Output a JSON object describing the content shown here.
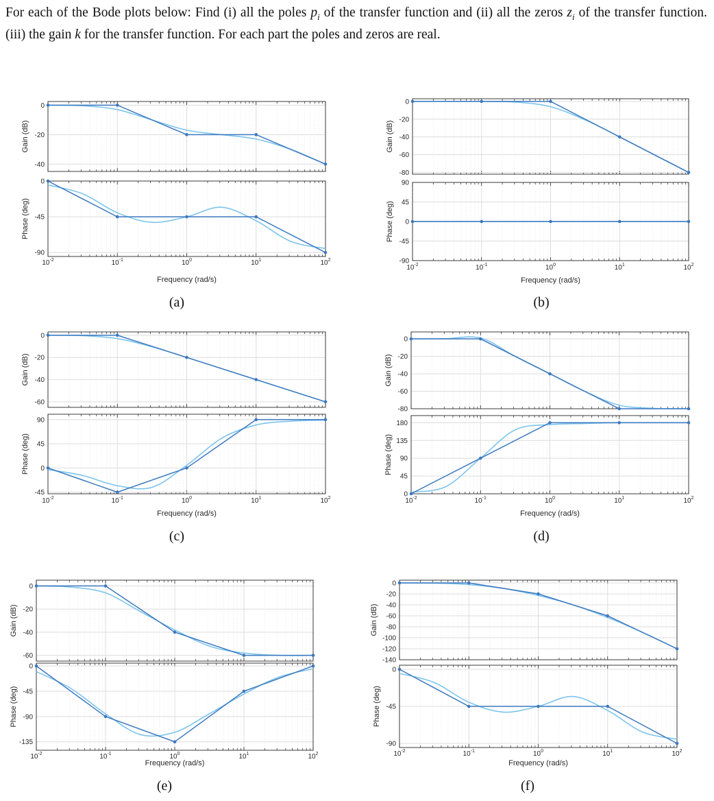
{
  "prompt": {
    "parts": [
      {
        "t": "For each of the Bode plots below: Find (i) all the poles "
      },
      {
        "t": "p",
        "i": true
      },
      {
        "t": "i",
        "sub": true
      },
      {
        "t": " of the transfer function and (ii) all the zeros "
      },
      {
        "t": "z",
        "i": true
      },
      {
        "t": "i",
        "sub": true
      },
      {
        "t": " of the transfer function. (iii) the gain "
      },
      {
        "t": "k",
        "i": true
      },
      {
        "t": " for the transfer function. For each part the poles and zeros are real."
      }
    ]
  },
  "colors": {
    "asymptote": "#3b78bf",
    "exact": "#7cc4ec",
    "grid": "#dcdcdc",
    "axis": "#262626"
  },
  "chart_data": [
    {
      "type": "line",
      "caption": "(a)",
      "x_scale": "log",
      "xlim": [
        0.01,
        100
      ],
      "x_ticks": [
        "10^-2",
        "10^-1",
        "10^0",
        "10^1",
        "10^2"
      ],
      "xlabel": "Frequency (rad/s)",
      "grid": true,
      "gain": {
        "ylabel": "Gain (dB)",
        "yticks": [
          0,
          -20,
          -40
        ],
        "ylim": [
          -45,
          2.5
        ],
        "asymptote": {
          "x": [
            0.01,
            0.1,
            1,
            10,
            100
          ],
          "y": [
            0,
            0,
            -20,
            -20,
            -40
          ]
        },
        "exact": {
          "x": [
            0.01,
            0.0316,
            0.1,
            0.316,
            1,
            3.16,
            10,
            31.6,
            100
          ],
          "y": [
            0,
            -0.4,
            -3,
            -10,
            -17,
            -20,
            -23,
            -30,
            -40
          ]
        }
      },
      "phase": {
        "ylabel": "Phase (deg)",
        "yticks": [
          0,
          -45,
          -90
        ],
        "ylim": [
          -95,
          0
        ],
        "asymptote": {
          "x": [
            0.01,
            0.1,
            1,
            10,
            100
          ],
          "y": [
            0,
            -45,
            -45,
            -45,
            -90
          ]
        },
        "exact": {
          "x": [
            0.01,
            0.0316,
            0.1,
            0.316,
            1,
            3.16,
            10,
            31.6,
            100
          ],
          "y": [
            -5,
            -16,
            -40,
            -52,
            -45,
            -33,
            -50,
            -76,
            -85
          ]
        }
      }
    },
    {
      "type": "line",
      "caption": "(b)",
      "x_scale": "log",
      "xlim": [
        0.01,
        100
      ],
      "x_ticks": [
        "10^-2",
        "10^-1",
        "10^0",
        "10^1",
        "10^2"
      ],
      "xlabel": "Frequency (rad/s)",
      "grid": true,
      "gain": {
        "ylabel": "Gain (dB)",
        "yticks": [
          0,
          -20,
          -40,
          -60,
          -80
        ],
        "ylim": [
          -82,
          3
        ],
        "asymptote": {
          "x": [
            0.01,
            0.1,
            1,
            10,
            100
          ],
          "y": [
            0,
            0,
            0,
            -40,
            -80
          ]
        },
        "exact": {
          "x": [
            0.01,
            0.0316,
            0.1,
            0.316,
            1,
            3.16,
            10,
            31.6,
            100
          ],
          "y": [
            0,
            0,
            0,
            -0.8,
            -6,
            -20.8,
            -40,
            -60,
            -80
          ]
        }
      },
      "phase": {
        "ylabel": "Phase (deg)",
        "yticks": [
          90,
          45,
          0,
          -45,
          -90
        ],
        "ylim": [
          -90,
          90
        ],
        "asymptote": {
          "x": [
            0.01,
            0.1,
            1,
            10,
            100
          ],
          "y": [
            0,
            0,
            0,
            0,
            0
          ]
        },
        "exact": {
          "x": [
            0.01,
            100
          ],
          "y": [
            0,
            0
          ]
        }
      }
    },
    {
      "type": "line",
      "caption": "(c)",
      "x_scale": "log",
      "xlim": [
        0.01,
        100
      ],
      "x_ticks": [
        "10^-2",
        "10^-1",
        "10^0",
        "10^1",
        "10^2"
      ],
      "xlabel": "Frequency (rad/s)",
      "grid": true,
      "gain": {
        "ylabel": "Gain (dB)",
        "yticks": [
          0,
          -20,
          -40,
          -60
        ],
        "ylim": [
          -65,
          3
        ],
        "asymptote": {
          "x": [
            0.01,
            0.1,
            1,
            10,
            100
          ],
          "y": [
            0,
            0,
            -20,
            -40,
            -60
          ]
        },
        "exact": {
          "x": [
            0.01,
            0.0316,
            0.1,
            0.316,
            1,
            3.16,
            10,
            31.6,
            100
          ],
          "y": [
            0,
            -0.4,
            -3,
            -10.4,
            -20,
            -30,
            -40,
            -50,
            -60
          ]
        }
      },
      "phase": {
        "ylabel": "Phase (deg)",
        "yticks": [
          90,
          45,
          0,
          -45
        ],
        "ylim": [
          -48,
          100
        ],
        "asymptote": {
          "x": [
            0.01,
            0.1,
            1,
            10,
            100
          ],
          "y": [
            0,
            -45,
            0,
            90,
            90
          ]
        },
        "exact": {
          "x": [
            0.01,
            0.0316,
            0.1,
            0.316,
            1,
            3.16,
            10,
            31.6,
            100
          ],
          "y": [
            -3,
            -14,
            -33,
            -36,
            5,
            55,
            80,
            87,
            89
          ]
        }
      }
    },
    {
      "type": "line",
      "caption": "(d)",
      "x_scale": "log",
      "xlim": [
        0.01,
        100
      ],
      "x_ticks": [
        "10^-2",
        "10^-1",
        "10^0",
        "10^1",
        "10^2"
      ],
      "xlabel": "Frequency (rad/s)",
      "grid": true,
      "gain": {
        "ylabel": "Gain (dB)",
        "yticks": [
          0,
          -20,
          -40,
          -60,
          -80
        ],
        "ylim": [
          -80,
          8
        ],
        "asymptote": {
          "x": [
            0.01,
            0.1,
            1,
            10,
            100
          ],
          "y": [
            0,
            0,
            -40,
            -80,
            -80
          ]
        },
        "exact": {
          "x": [
            0.01,
            0.0316,
            0.1,
            0.316,
            1,
            3.16,
            10,
            31.6,
            100
          ],
          "y": [
            0,
            0.3,
            1,
            -20,
            -40,
            -60,
            -76,
            -79.5,
            -80
          ]
        }
      },
      "phase": {
        "ylabel": "Phase (deg)",
        "yticks": [
          180,
          135,
          90,
          45,
          0
        ],
        "ylim": [
          0,
          198
        ],
        "asymptote": {
          "x": [
            0.01,
            0.1,
            1,
            10,
            100
          ],
          "y": [
            0,
            90,
            180,
            180,
            180
          ]
        },
        "exact": {
          "x": [
            0.01,
            0.0316,
            0.1,
            0.316,
            1,
            3.16,
            10,
            31.6,
            100
          ],
          "y": [
            4,
            18,
            90,
            162,
            175,
            178,
            180,
            180,
            180
          ]
        }
      }
    },
    {
      "type": "line",
      "caption": "(e)",
      "x_scale": "log",
      "xlim": [
        0.01,
        100
      ],
      "x_ticks": [
        "10^-2",
        "10^-1",
        "10^0",
        "10^1",
        "10^2"
      ],
      "xlabel": "Frequency (rad/s)",
      "grid": true,
      "gain": {
        "ylabel": "Gain (dB)",
        "yticks": [
          0,
          -20,
          -40,
          -60
        ],
        "ylim": [
          -65,
          5
        ],
        "asymptote": {
          "x": [
            0.01,
            0.1,
            1,
            10,
            100
          ],
          "y": [
            0,
            0,
            -40,
            -60,
            -60
          ]
        },
        "exact": {
          "x": [
            0.01,
            0.0316,
            0.1,
            0.316,
            1,
            3.16,
            10,
            31.6,
            100
          ],
          "y": [
            0,
            -1,
            -6,
            -22,
            -38,
            -52,
            -58,
            -60,
            -60
          ]
        }
      },
      "phase": {
        "ylabel": "Phase (deg)",
        "yticks": [
          0,
          -45,
          -90,
          -135
        ],
        "ylim": [
          -150,
          5
        ],
        "asymptote": {
          "x": [
            0.01,
            0.1,
            1,
            10,
            100
          ],
          "y": [
            0,
            -90,
            -135,
            -45,
            0
          ]
        },
        "exact": {
          "x": [
            0.01,
            0.0316,
            0.1,
            0.316,
            1,
            3.16,
            10,
            31.6,
            100
          ],
          "y": [
            -10,
            -40,
            -85,
            -122,
            -118,
            -85,
            -50,
            -20,
            -5
          ]
        }
      }
    },
    {
      "type": "line",
      "caption": "(f)",
      "x_scale": "log",
      "xlim": [
        0.01,
        100
      ],
      "x_ticks": [
        "10^-2",
        "10^-1",
        "10^0",
        "10^1",
        "10^2"
      ],
      "xlabel": "Frequency (rad/s)",
      "grid": true,
      "gain": {
        "ylabel": "Gain (dB)",
        "yticks": [
          0,
          -20,
          -40,
          -60,
          -80,
          -100,
          -120,
          -140
        ],
        "ylim": [
          -140,
          5
        ],
        "asymptote": {
          "x": [
            0.01,
            0.1,
            1,
            10,
            100
          ],
          "y": [
            0,
            0,
            -20,
            -60,
            -120
          ]
        },
        "exact": {
          "x": [
            0.01,
            0.0316,
            0.1,
            0.316,
            1,
            3.16,
            10,
            31.6,
            100
          ],
          "y": [
            0,
            -0.4,
            -3,
            -10,
            -23,
            -40,
            -63,
            -90,
            -120
          ]
        }
      },
      "phase": {
        "ylabel": "Phase (deg)",
        "yticks": [
          0,
          -45,
          -90
        ],
        "ylim": [
          -95,
          5
        ],
        "asymptote": {
          "x": [
            0.01,
            0.1,
            1,
            10,
            100
          ],
          "y": [
            0,
            -45,
            -45,
            -45,
            -90
          ]
        },
        "exact": {
          "x": [
            0.01,
            0.0316,
            0.1,
            0.316,
            1,
            3.16,
            10,
            31.6,
            100
          ],
          "y": [
            -5,
            -16,
            -40,
            -52,
            -45,
            -33,
            -50,
            -76,
            -85
          ]
        }
      }
    }
  ]
}
